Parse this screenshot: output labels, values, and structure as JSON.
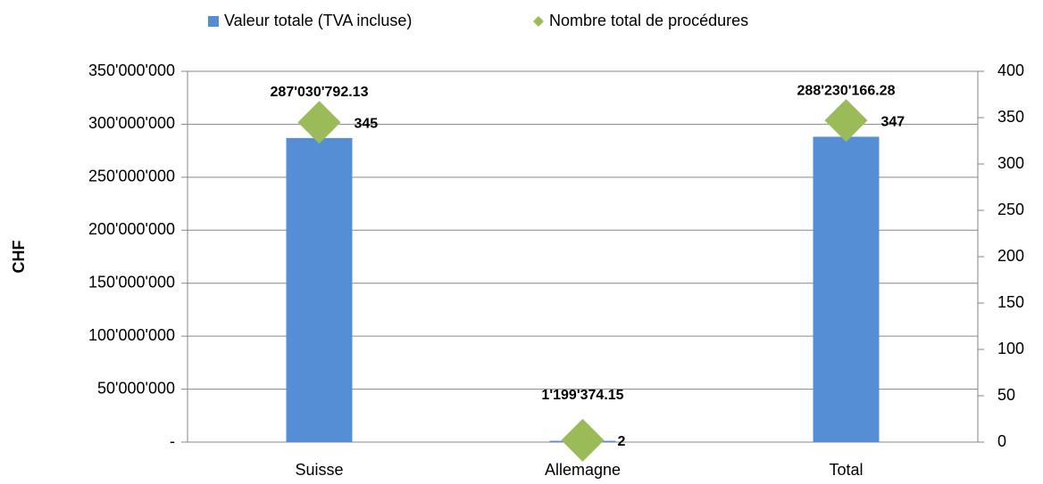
{
  "chart_data": {
    "type": "bar",
    "y_label": "CHF",
    "categories": [
      "Suisse",
      "Allemagne",
      "Total"
    ],
    "series": [
      {
        "name": "Valeur totale (TVA incluse)",
        "type": "bar",
        "color": "#558ed5",
        "values": [
          287030792.13,
          1199374.15,
          288230166.28
        ],
        "value_labels": [
          "287'030'792.13",
          "1'199'374.15",
          "288'230'166.28"
        ]
      },
      {
        "name": "Nombre total de procédures",
        "type": "scatter",
        "marker": "diamond",
        "color": "#9bbb59",
        "axis": "y2",
        "values": [
          345,
          2,
          347
        ]
      }
    ],
    "ylim": [
      0,
      350000000
    ],
    "yticks": [
      {
        "value": 0,
        "label": "-"
      },
      {
        "value": 50000000,
        "label": "50'000'000"
      },
      {
        "value": 100000000,
        "label": "100'000'000"
      },
      {
        "value": 150000000,
        "label": "150'000'000"
      },
      {
        "value": 200000000,
        "label": "200'000'000"
      },
      {
        "value": 250000000,
        "label": "250'000'000"
      },
      {
        "value": 300000000,
        "label": "300'000'000"
      },
      {
        "value": 350000000,
        "label": "350'000'000"
      }
    ],
    "y2lim": [
      0,
      400
    ],
    "y2ticks": [
      0,
      50,
      100,
      150,
      200,
      250,
      300,
      350,
      400
    ],
    "grid": true,
    "legend": "top"
  }
}
